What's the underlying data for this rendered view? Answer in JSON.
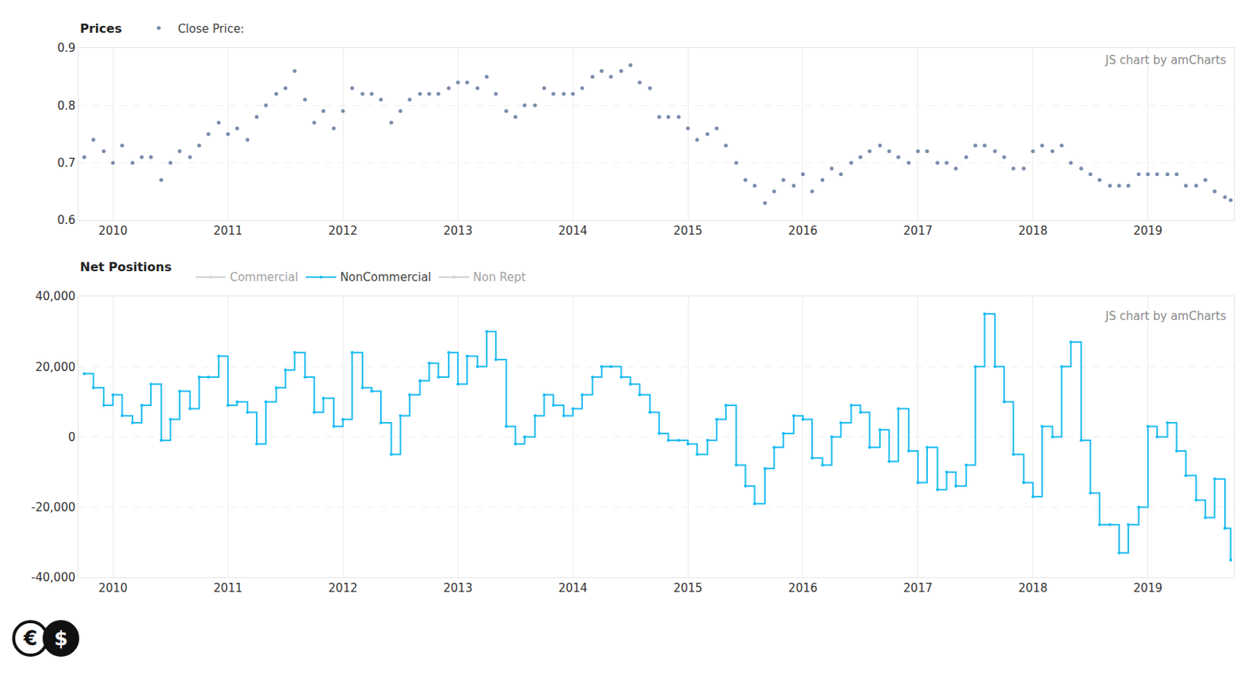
{
  "chart_data": [
    {
      "type": "scatter",
      "title": "Prices",
      "x": [
        2009.75,
        2009.83,
        2009.92,
        2010.0,
        2010.08,
        2010.17,
        2010.25,
        2010.33,
        2010.42,
        2010.5,
        2010.58,
        2010.67,
        2010.75,
        2010.83,
        2010.92,
        2011.0,
        2011.08,
        2011.17,
        2011.25,
        2011.33,
        2011.42,
        2011.5,
        2011.58,
        2011.67,
        2011.75,
        2011.83,
        2011.92,
        2012.0,
        2012.08,
        2012.17,
        2012.25,
        2012.33,
        2012.42,
        2012.5,
        2012.58,
        2012.67,
        2012.75,
        2012.83,
        2012.92,
        2013.0,
        2013.08,
        2013.17,
        2013.25,
        2013.33,
        2013.42,
        2013.5,
        2013.58,
        2013.67,
        2013.75,
        2013.83,
        2013.92,
        2014.0,
        2014.08,
        2014.17,
        2014.25,
        2014.33,
        2014.42,
        2014.5,
        2014.58,
        2014.67,
        2014.75,
        2014.83,
        2014.92,
        2015.0,
        2015.08,
        2015.17,
        2015.25,
        2015.33,
        2015.42,
        2015.5,
        2015.58,
        2015.67,
        2015.75,
        2015.83,
        2015.92,
        2016.0,
        2016.08,
        2016.17,
        2016.25,
        2016.33,
        2016.42,
        2016.5,
        2016.58,
        2016.67,
        2016.75,
        2016.83,
        2016.92,
        2017.0,
        2017.08,
        2017.17,
        2017.25,
        2017.33,
        2017.42,
        2017.5,
        2017.58,
        2017.67,
        2017.75,
        2017.83,
        2017.92,
        2018.0,
        2018.08,
        2018.17,
        2018.25,
        2018.33,
        2018.42,
        2018.5,
        2018.58,
        2018.67,
        2018.75,
        2018.83,
        2018.92,
        2019.0,
        2019.08,
        2019.17,
        2019.25,
        2019.33,
        2019.42,
        2019.5,
        2019.58,
        2019.67,
        2019.72
      ],
      "series": [
        {
          "name": "Close Price:",
          "color": "#7b8cad",
          "marker": "circle",
          "values": [
            0.71,
            0.74,
            0.72,
            0.7,
            0.73,
            0.7,
            0.71,
            0.71,
            0.67,
            0.7,
            0.72,
            0.71,
            0.73,
            0.75,
            0.77,
            0.75,
            0.76,
            0.74,
            0.78,
            0.8,
            0.82,
            0.83,
            0.86,
            0.81,
            0.77,
            0.79,
            0.76,
            0.79,
            0.83,
            0.82,
            0.82,
            0.81,
            0.77,
            0.79,
            0.81,
            0.82,
            0.82,
            0.82,
            0.83,
            0.84,
            0.84,
            0.83,
            0.85,
            0.82,
            0.79,
            0.78,
            0.8,
            0.8,
            0.83,
            0.82,
            0.82,
            0.82,
            0.83,
            0.85,
            0.86,
            0.85,
            0.86,
            0.87,
            0.84,
            0.83,
            0.78,
            0.78,
            0.78,
            0.76,
            0.74,
            0.75,
            0.76,
            0.73,
            0.7,
            0.67,
            0.66,
            0.63,
            0.65,
            0.67,
            0.66,
            0.68,
            0.65,
            0.67,
            0.69,
            0.68,
            0.7,
            0.71,
            0.72,
            0.73,
            0.72,
            0.71,
            0.7,
            0.72,
            0.72,
            0.7,
            0.7,
            0.69,
            0.71,
            0.73,
            0.73,
            0.72,
            0.71,
            0.69,
            0.69,
            0.72,
            0.73,
            0.72,
            0.73,
            0.7,
            0.69,
            0.68,
            0.67,
            0.66,
            0.66,
            0.66,
            0.68,
            0.68,
            0.68,
            0.68,
            0.68,
            0.66,
            0.66,
            0.67,
            0.65,
            0.64,
            0.635
          ]
        }
      ],
      "annotations": [
        "JS chart by amCharts"
      ],
      "xlim": [
        2009.7,
        2019.75
      ],
      "xticks": [
        2010,
        2011,
        2012,
        2013,
        2014,
        2015,
        2016,
        2017,
        2018,
        2019
      ],
      "ylim": [
        0.6,
        0.9
      ],
      "yticks": [
        0.6,
        0.7,
        0.8,
        0.9
      ],
      "grid": true,
      "legend": "top-left"
    },
    {
      "type": "line",
      "title": "Net Positions",
      "x": [
        2009.75,
        2009.83,
        2009.92,
        2010.0,
        2010.08,
        2010.17,
        2010.25,
        2010.33,
        2010.42,
        2010.5,
        2010.58,
        2010.67,
        2010.75,
        2010.83,
        2010.92,
        2011.0,
        2011.08,
        2011.17,
        2011.25,
        2011.33,
        2011.42,
        2011.5,
        2011.58,
        2011.67,
        2011.75,
        2011.83,
        2011.92,
        2012.0,
        2012.08,
        2012.17,
        2012.25,
        2012.33,
        2012.42,
        2012.5,
        2012.58,
        2012.67,
        2012.75,
        2012.83,
        2012.92,
        2013.0,
        2013.08,
        2013.17,
        2013.25,
        2013.33,
        2013.42,
        2013.5,
        2013.58,
        2013.67,
        2013.75,
        2013.83,
        2013.92,
        2014.0,
        2014.08,
        2014.17,
        2014.25,
        2014.33,
        2014.42,
        2014.5,
        2014.58,
        2014.67,
        2014.75,
        2014.83,
        2014.92,
        2015.0,
        2015.08,
        2015.17,
        2015.25,
        2015.33,
        2015.42,
        2015.5,
        2015.58,
        2015.67,
        2015.75,
        2015.83,
        2015.92,
        2016.0,
        2016.08,
        2016.17,
        2016.25,
        2016.33,
        2016.42,
        2016.5,
        2016.58,
        2016.67,
        2016.75,
        2016.83,
        2016.92,
        2017.0,
        2017.08,
        2017.17,
        2017.25,
        2017.33,
        2017.42,
        2017.5,
        2017.58,
        2017.67,
        2017.75,
        2017.83,
        2017.92,
        2018.0,
        2018.08,
        2018.17,
        2018.25,
        2018.33,
        2018.42,
        2018.5,
        2018.58,
        2018.67,
        2018.75,
        2018.83,
        2018.92,
        2019.0,
        2019.08,
        2019.17,
        2019.25,
        2019.33,
        2019.42,
        2019.5,
        2019.58,
        2019.67,
        2019.72
      ],
      "series": [
        {
          "name": "Commercial",
          "color": "#a0a4aa",
          "marker": "circle",
          "values": [
            null,
            null,
            null,
            null,
            null,
            null,
            null,
            null,
            null,
            null,
            null,
            null,
            null,
            null,
            null,
            null,
            null,
            null,
            null,
            null,
            null,
            null,
            null,
            null,
            null,
            null,
            null,
            null,
            null,
            null,
            null,
            null,
            null,
            null,
            null,
            null,
            null,
            null,
            null,
            null,
            null,
            null,
            null,
            null,
            null,
            null,
            null,
            null,
            null,
            null,
            null,
            null,
            null,
            null,
            null,
            null,
            null,
            null,
            null,
            null,
            null,
            null,
            null,
            null,
            null,
            null,
            null,
            null,
            null,
            null,
            null,
            null,
            null,
            null,
            null,
            null,
            null,
            null,
            null,
            null,
            null,
            null,
            null,
            null,
            null,
            null,
            null,
            null,
            null,
            null,
            null,
            null,
            null,
            null,
            null,
            null,
            null,
            null,
            null,
            null,
            null,
            null,
            null,
            null,
            null,
            null,
            null,
            null,
            null,
            null,
            null,
            null,
            null,
            null,
            null,
            null,
            null,
            null,
            null,
            null,
            null
          ]
        },
        {
          "name": "NonCommercial",
          "color": "#1cbcf2",
          "marker": "circle",
          "values": [
            18000,
            14000,
            9000,
            12000,
            6000,
            4000,
            9000,
            15000,
            -1000,
            5000,
            13000,
            8000,
            17000,
            17000,
            23000,
            9000,
            10000,
            7000,
            -2000,
            10000,
            14000,
            19000,
            24000,
            17000,
            7000,
            11000,
            3000,
            5000,
            24000,
            14000,
            13000,
            4000,
            -5000,
            6000,
            12000,
            16000,
            21000,
            17000,
            24000,
            15000,
            23000,
            20000,
            30000,
            22000,
            3000,
            -2000,
            0,
            6000,
            12000,
            9000,
            6000,
            8000,
            12000,
            17000,
            20000,
            20000,
            17000,
            15000,
            12000,
            7000,
            1000,
            -1000,
            -1000,
            -2000,
            -5000,
            -1000,
            5000,
            9000,
            -8000,
            -14000,
            -19000,
            -9000,
            -3000,
            1000,
            6000,
            5000,
            -6000,
            -8000,
            0,
            4000,
            9000,
            7000,
            -3000,
            2000,
            -7000,
            8000,
            -4000,
            -13000,
            -3000,
            -15000,
            -10000,
            -14000,
            -8000,
            20000,
            35000,
            20000,
            10000,
            -5000,
            -13000,
            -17000,
            3000,
            0,
            20000,
            27000,
            -1000,
            -16000,
            -25000,
            -25000,
            -33000,
            -25000,
            -20000,
            3000,
            0,
            4000,
            -4000,
            -11000,
            -18000,
            -23000,
            -12000,
            -26000,
            -35000
          ]
        },
        {
          "name": "Non Rept",
          "color": "#a0a4aa",
          "marker": "circle",
          "values": [
            null,
            null,
            null,
            null,
            null,
            null,
            null,
            null,
            null,
            null,
            null,
            null,
            null,
            null,
            null,
            null,
            null,
            null,
            null,
            null,
            null,
            null,
            null,
            null,
            null,
            null,
            null,
            null,
            null,
            null,
            null,
            null,
            null,
            null,
            null,
            null,
            null,
            null,
            null,
            null,
            null,
            null,
            null,
            null,
            null,
            null,
            null,
            null,
            null,
            null,
            null,
            null,
            null,
            null,
            null,
            null,
            null,
            null,
            null,
            null,
            null,
            null,
            null,
            null,
            null,
            null,
            null,
            null,
            null,
            null,
            null,
            null,
            null,
            null,
            null,
            null,
            null,
            null,
            null,
            null,
            null,
            null,
            null,
            null,
            null,
            null,
            null,
            null,
            null,
            null,
            null,
            null,
            null,
            null,
            null,
            null,
            null,
            null,
            null,
            null,
            null,
            null,
            null,
            null,
            null,
            null,
            null,
            null,
            null,
            null,
            null,
            null,
            null,
            null,
            null,
            null,
            null,
            null,
            null,
            null,
            null
          ]
        }
      ],
      "annotations": [
        "JS chart by amCharts"
      ],
      "xlim": [
        2009.7,
        2019.75
      ],
      "xticks": [
        2010,
        2011,
        2012,
        2013,
        2014,
        2015,
        2016,
        2017,
        2018,
        2019
      ],
      "ylim": [
        -40000,
        40000
      ],
      "yticks": [
        {
          "value": -40000,
          "label": "-40,000"
        },
        {
          "value": -20000,
          "label": "-20,000"
        },
        0,
        {
          "value": 20000,
          "label": "20,000"
        },
        {
          "value": 40000,
          "label": "40,000"
        }
      ],
      "grid": true,
      "legend": "top-left"
    }
  ],
  "logo": [
    "€",
    "$"
  ]
}
